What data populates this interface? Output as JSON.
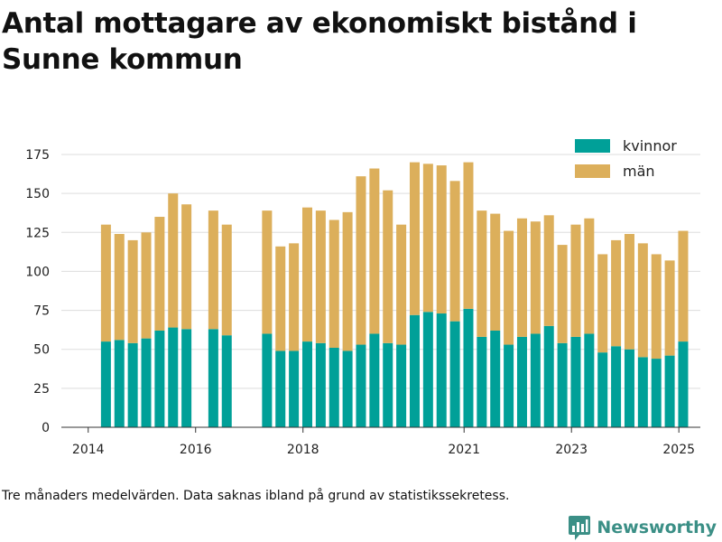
{
  "chart_data": {
    "type": "bar",
    "stacked": true,
    "title": "Antal mottagare av ekonomiskt bistånd i Sunne kommun",
    "x_tick_labels": [
      "2014",
      "2016",
      "2018",
      "2021",
      "2023",
      "2025"
    ],
    "x_tick_positions": [
      2014.0,
      2016.0,
      2018.0,
      2021.0,
      2023.0,
      2025.0
    ],
    "xlim": [
      2013.5,
      2025.4
    ],
    "ylim": [
      0,
      175
    ],
    "y_ticks": [
      0,
      25,
      50,
      75,
      100,
      125,
      150,
      175
    ],
    "grid": true,
    "legend_position": "top-right",
    "x": [
      2014.33,
      2014.58,
      2014.83,
      2015.08,
      2015.33,
      2015.58,
      2015.83,
      2016.33,
      2016.58,
      2017.33,
      2017.58,
      2017.83,
      2018.08,
      2018.33,
      2018.58,
      2018.83,
      2019.08,
      2019.33,
      2019.58,
      2019.83,
      2020.08,
      2020.33,
      2020.58,
      2020.83,
      2021.08,
      2021.33,
      2021.58,
      2021.83,
      2022.08,
      2022.33,
      2022.58,
      2022.83,
      2023.08,
      2023.33,
      2023.58,
      2023.83,
      2024.08,
      2024.33,
      2024.58,
      2024.83,
      2025.08
    ],
    "series": [
      {
        "name": "kvinnor",
        "color": "#00a098",
        "values": [
          55,
          56,
          54,
          57,
          62,
          64,
          63,
          63,
          59,
          60,
          49,
          49,
          55,
          54,
          51,
          49,
          53,
          60,
          54,
          53,
          72,
          74,
          73,
          68,
          76,
          58,
          62,
          53,
          58,
          60,
          65,
          54,
          58,
          60,
          48,
          52,
          50,
          45,
          44,
          46,
          55
        ]
      },
      {
        "name": "män",
        "color": "#dcaf5b",
        "values": [
          75,
          68,
          66,
          68,
          73,
          86,
          80,
          76,
          71,
          79,
          67,
          69,
          86,
          85,
          82,
          89,
          108,
          106,
          98,
          77,
          98,
          95,
          95,
          90,
          94,
          81,
          75,
          73,
          76,
          72,
          71,
          63,
          72,
          74,
          63,
          68,
          74,
          73,
          67,
          61,
          71
        ]
      }
    ]
  },
  "footnote": "Tre månaders medelvärden. Data saknas ibland på grund av statistikssekretess.",
  "brand": {
    "name": "Newsworthy",
    "color": "#3b8f86"
  }
}
